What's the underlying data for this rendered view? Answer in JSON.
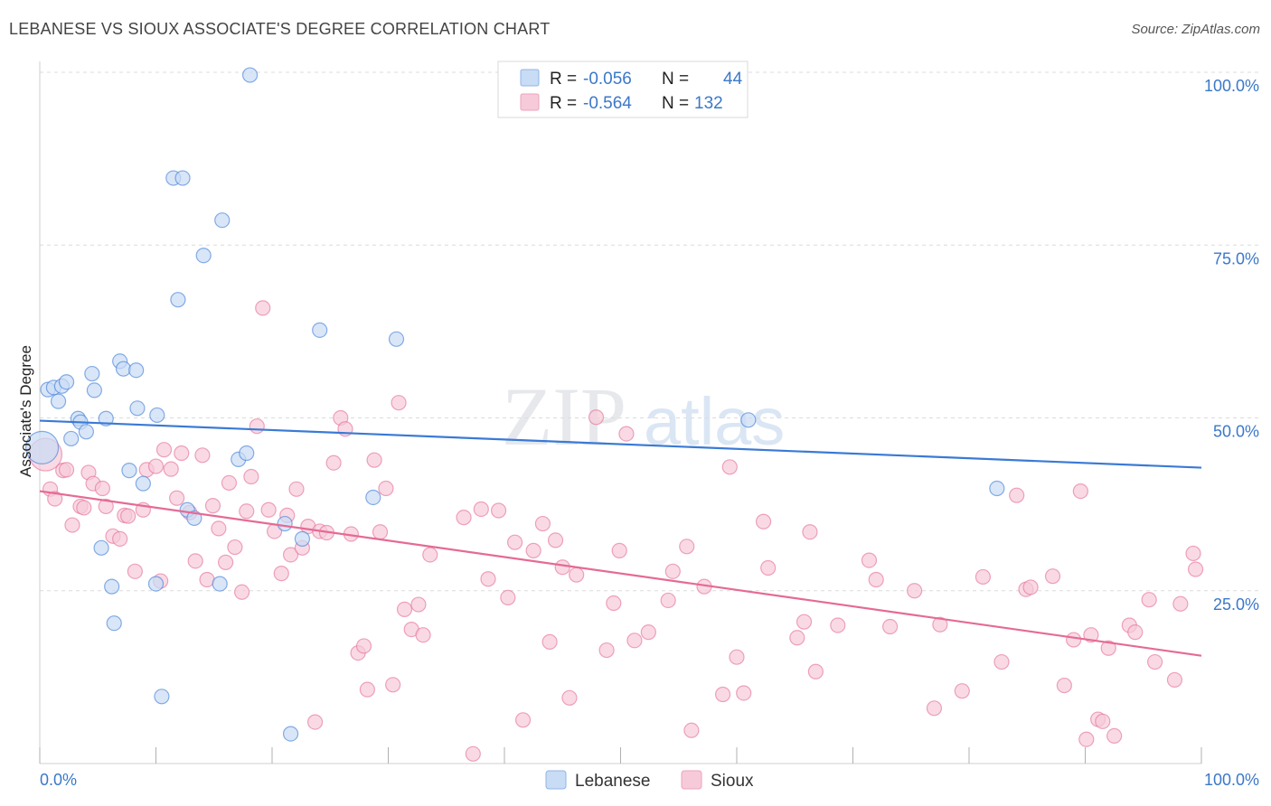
{
  "header": {
    "title": "LEBANESE VS SIOUX ASSOCIATE'S DEGREE CORRELATION CHART",
    "source": "Source: ZipAtlas.com"
  },
  "watermark": {
    "zip": "ZIP",
    "atlas": "atlas"
  },
  "legend": {
    "rows": [
      {
        "r_label": "R =",
        "r_value": "-0.056",
        "n_label": "N =",
        "n_value": "44",
        "color": "#aac8f0"
      },
      {
        "r_label": "R =",
        "r_value": "-0.564",
        "n_label": "N =",
        "n_value": "132",
        "color": "#f5b8cc"
      }
    ]
  },
  "bottom_legend": [
    {
      "label": "Lebanese",
      "color": "#aac8f0"
    },
    {
      "label": "Sioux",
      "color": "#f5b8cc"
    }
  ],
  "chart_data": {
    "type": "scatter",
    "title": "LEBANESE VS SIOUX ASSOCIATE'S DEGREE CORRELATION CHART",
    "xlabel": "",
    "ylabel": "Associate's Degree",
    "xlim": [
      0,
      100
    ],
    "ylim": [
      0,
      100
    ],
    "x_tick_labels": [
      "0.0%",
      "100.0%"
    ],
    "y_tick_labels": [
      "25.0%",
      "50.0%",
      "75.0%",
      "100.0%"
    ],
    "y_tick_values": [
      25,
      50,
      75,
      100
    ],
    "series": [
      {
        "name": "Lebanese",
        "color": "#3a7ad5",
        "fill": "#c9dcf5",
        "trend": {
          "x": [
            0,
            100
          ],
          "y": [
            49.6,
            42.8
          ]
        },
        "points": [
          [
            0.2,
            45.7
          ],
          [
            0.7,
            54.1
          ],
          [
            1.2,
            54.4
          ],
          [
            1.6,
            52.4
          ],
          [
            1.9,
            54.6
          ],
          [
            2.3,
            55.2
          ],
          [
            2.7,
            47.0
          ],
          [
            3.3,
            49.9
          ],
          [
            3.5,
            49.4
          ],
          [
            4.0,
            48.0
          ],
          [
            4.5,
            56.4
          ],
          [
            4.7,
            54.0
          ],
          [
            5.3,
            31.2
          ],
          [
            5.7,
            49.9
          ],
          [
            6.2,
            25.6
          ],
          [
            6.4,
            20.3
          ],
          [
            6.9,
            58.2
          ],
          [
            7.2,
            57.1
          ],
          [
            7.7,
            42.4
          ],
          [
            8.3,
            56.9
          ],
          [
            8.4,
            51.4
          ],
          [
            8.9,
            40.5
          ],
          [
            10.1,
            50.4
          ],
          [
            10.0,
            26.0
          ],
          [
            10.5,
            9.7
          ],
          [
            11.5,
            84.7
          ],
          [
            11.9,
            67.1
          ],
          [
            12.3,
            84.7
          ],
          [
            12.7,
            36.7
          ],
          [
            13.3,
            35.5
          ],
          [
            14.1,
            73.5
          ],
          [
            15.5,
            26.0
          ],
          [
            15.7,
            78.6
          ],
          [
            17.1,
            44.0
          ],
          [
            17.8,
            44.9
          ],
          [
            18.1,
            99.6
          ],
          [
            21.1,
            34.7
          ],
          [
            21.6,
            4.3
          ],
          [
            22.6,
            32.5
          ],
          [
            24.1,
            62.7
          ],
          [
            28.7,
            38.5
          ],
          [
            30.7,
            61.4
          ],
          [
            61.0,
            49.7
          ],
          [
            82.4,
            39.8
          ]
        ]
      },
      {
        "name": "Sioux",
        "color": "#e56a95",
        "fill": "#f7cad9",
        "trend": {
          "x": [
            0,
            100
          ],
          "y": [
            39.4,
            15.6
          ]
        },
        "points": [
          [
            0.5,
            44.7
          ],
          [
            0.9,
            39.7
          ],
          [
            1.3,
            38.3
          ],
          [
            2.0,
            42.4
          ],
          [
            2.3,
            42.5
          ],
          [
            2.8,
            34.5
          ],
          [
            3.5,
            37.2
          ],
          [
            3.8,
            37.0
          ],
          [
            4.2,
            42.1
          ],
          [
            4.6,
            40.5
          ],
          [
            5.4,
            39.8
          ],
          [
            5.7,
            37.2
          ],
          [
            6.3,
            32.9
          ],
          [
            6.9,
            32.5
          ],
          [
            7.3,
            35.9
          ],
          [
            7.6,
            35.8
          ],
          [
            8.2,
            27.8
          ],
          [
            8.9,
            36.7
          ],
          [
            9.2,
            42.5
          ],
          [
            10.0,
            43.0
          ],
          [
            10.4,
            26.4
          ],
          [
            10.7,
            45.4
          ],
          [
            11.3,
            42.6
          ],
          [
            11.8,
            38.4
          ],
          [
            12.2,
            44.9
          ],
          [
            12.9,
            36.3
          ],
          [
            13.4,
            29.3
          ],
          [
            14.0,
            44.6
          ],
          [
            14.4,
            26.6
          ],
          [
            14.9,
            37.3
          ],
          [
            15.4,
            34.0
          ],
          [
            16.0,
            29.1
          ],
          [
            16.3,
            40.6
          ],
          [
            16.8,
            31.3
          ],
          [
            17.4,
            24.8
          ],
          [
            17.8,
            36.5
          ],
          [
            18.2,
            41.5
          ],
          [
            18.7,
            48.8
          ],
          [
            19.2,
            65.9
          ],
          [
            19.7,
            36.7
          ],
          [
            20.2,
            33.6
          ],
          [
            20.8,
            27.5
          ],
          [
            21.3,
            35.9
          ],
          [
            21.6,
            30.2
          ],
          [
            22.1,
            39.7
          ],
          [
            22.6,
            31.2
          ],
          [
            23.1,
            34.3
          ],
          [
            23.7,
            6.0
          ],
          [
            24.1,
            33.6
          ],
          [
            24.7,
            33.4
          ],
          [
            25.3,
            43.5
          ],
          [
            25.9,
            50.0
          ],
          [
            26.3,
            48.4
          ],
          [
            26.8,
            33.2
          ],
          [
            27.4,
            16.0
          ],
          [
            27.9,
            17.0
          ],
          [
            28.2,
            10.7
          ],
          [
            28.8,
            43.9
          ],
          [
            29.3,
            33.5
          ],
          [
            29.8,
            39.8
          ],
          [
            30.4,
            11.4
          ],
          [
            30.9,
            52.2
          ],
          [
            31.4,
            22.3
          ],
          [
            32.0,
            19.4
          ],
          [
            32.6,
            23.0
          ],
          [
            33.0,
            18.6
          ],
          [
            33.6,
            30.2
          ],
          [
            36.5,
            35.6
          ],
          [
            37.3,
            1.4
          ],
          [
            38.0,
            36.8
          ],
          [
            38.6,
            26.7
          ],
          [
            39.5,
            36.6
          ],
          [
            40.3,
            24.0
          ],
          [
            40.9,
            32.0
          ],
          [
            41.6,
            6.3
          ],
          [
            42.5,
            30.8
          ],
          [
            43.3,
            34.7
          ],
          [
            43.9,
            17.6
          ],
          [
            44.4,
            32.3
          ],
          [
            45.0,
            28.4
          ],
          [
            45.6,
            9.5
          ],
          [
            46.2,
            27.3
          ],
          [
            47.9,
            50.1
          ],
          [
            48.8,
            16.4
          ],
          [
            49.4,
            23.2
          ],
          [
            49.9,
            30.8
          ],
          [
            50.5,
            47.7
          ],
          [
            51.2,
            17.8
          ],
          [
            52.4,
            19.0
          ],
          [
            54.1,
            23.6
          ],
          [
            54.5,
            27.8
          ],
          [
            55.7,
            31.4
          ],
          [
            56.1,
            4.8
          ],
          [
            57.2,
            25.6
          ],
          [
            58.8,
            10.0
          ],
          [
            59.4,
            42.9
          ],
          [
            60.0,
            15.4
          ],
          [
            60.6,
            10.2
          ],
          [
            62.3,
            35.0
          ],
          [
            62.7,
            28.3
          ],
          [
            65.2,
            18.2
          ],
          [
            65.8,
            20.5
          ],
          [
            66.3,
            33.5
          ],
          [
            66.8,
            13.3
          ],
          [
            68.7,
            20.0
          ],
          [
            71.4,
            29.4
          ],
          [
            72.0,
            26.6
          ],
          [
            73.2,
            19.8
          ],
          [
            75.3,
            25.0
          ],
          [
            77.0,
            8.0
          ],
          [
            77.5,
            20.1
          ],
          [
            79.4,
            10.5
          ],
          [
            81.2,
            27.0
          ],
          [
            82.8,
            14.7
          ],
          [
            84.1,
            38.8
          ],
          [
            84.9,
            25.2
          ],
          [
            85.3,
            25.5
          ],
          [
            87.2,
            27.1
          ],
          [
            88.2,
            11.3
          ],
          [
            89.0,
            17.9
          ],
          [
            89.6,
            39.4
          ],
          [
            90.1,
            3.5
          ],
          [
            90.5,
            18.6
          ],
          [
            91.1,
            6.4
          ],
          [
            91.5,
            6.1
          ],
          [
            92.0,
            16.7
          ],
          [
            92.5,
            4.0
          ],
          [
            93.8,
            20.0
          ],
          [
            94.3,
            19.0
          ],
          [
            95.5,
            23.7
          ],
          [
            96.0,
            14.7
          ],
          [
            97.7,
            12.1
          ],
          [
            98.2,
            23.1
          ],
          [
            99.3,
            30.4
          ],
          [
            99.5,
            28.1
          ]
        ]
      }
    ]
  }
}
